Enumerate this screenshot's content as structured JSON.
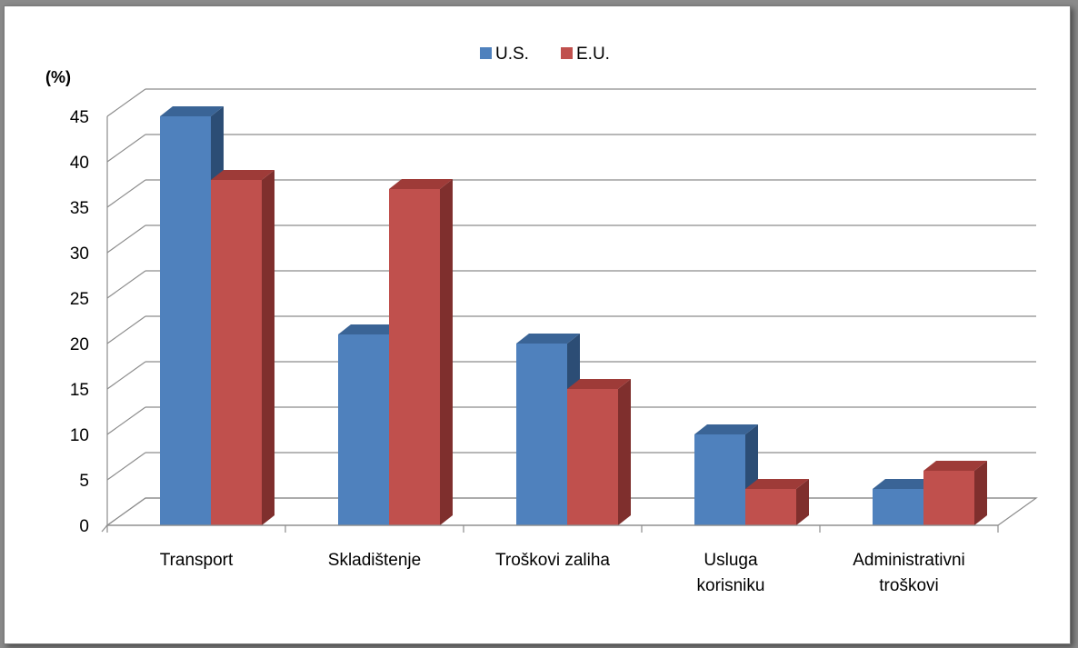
{
  "chart_data": {
    "type": "bar",
    "title": "",
    "ylabel": "(%)",
    "xlabel": "",
    "ylim": [
      0,
      45
    ],
    "yticks": [
      0,
      5,
      10,
      15,
      20,
      25,
      30,
      35,
      40,
      45
    ],
    "categories": [
      [
        "Transport"
      ],
      [
        "Skladištenje"
      ],
      [
        "Troškovi zaliha"
      ],
      [
        "Usluga",
        "korisniku"
      ],
      [
        "Administrativni",
        "troškovi"
      ]
    ],
    "series": [
      {
        "name": "U.S.",
        "values": [
          45,
          21,
          20,
          10,
          4
        ],
        "color": "#4f81bd",
        "top_color": "#3a6496",
        "side_color": "#2c4d75"
      },
      {
        "name": "E.U.",
        "values": [
          38,
          37,
          15,
          4,
          6
        ],
        "color": "#c0504d",
        "top_color": "#9e3b38",
        "side_color": "#7f2f2d"
      }
    ],
    "grid": true,
    "legend": "top-center",
    "style": "3d-clustered-column"
  }
}
